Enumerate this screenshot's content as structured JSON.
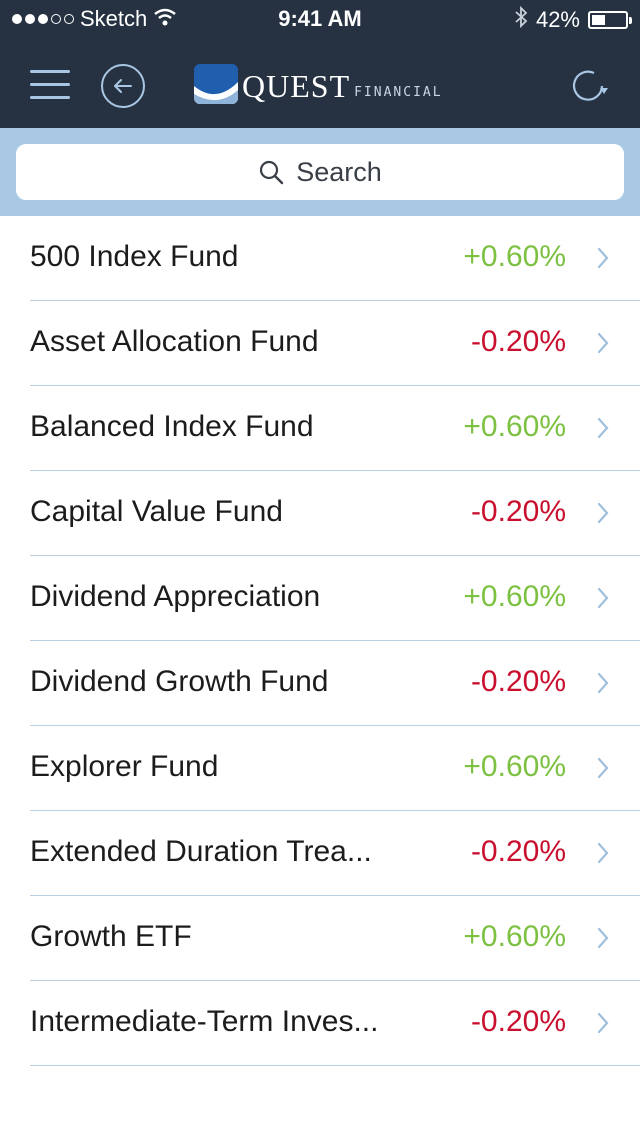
{
  "status": {
    "carrier": "Sketch",
    "time": "9:41 AM",
    "battery_percent_label": "42%",
    "battery_level": 0.42,
    "signal_bars_filled": 3,
    "signal_bars_total": 5
  },
  "header": {
    "brand_name": "QUEST",
    "brand_sub": "FINANCIAL",
    "icons": [
      "menu-icon",
      "back-arrow-icon",
      "refresh-icon"
    ],
    "bg_color": "#263241",
    "accent_color": "#a9c7e4"
  },
  "search": {
    "placeholder": "Search"
  },
  "colors": {
    "positive": "#7dc142",
    "negative": "#c8102e"
  },
  "funds": [
    {
      "name": "500 Index Fund",
      "change": "+0.60%",
      "trend": "up"
    },
    {
      "name": "Asset Allocation Fund",
      "change": "-0.20%",
      "trend": "down"
    },
    {
      "name": "Balanced Index Fund",
      "change": "+0.60%",
      "trend": "up"
    },
    {
      "name": "Capital Value Fund",
      "change": "-0.20%",
      "trend": "down"
    },
    {
      "name": "Dividend Appreciation",
      "change": "+0.60%",
      "trend": "up"
    },
    {
      "name": "Dividend Growth Fund",
      "change": "-0.20%",
      "trend": "down"
    },
    {
      "name": "Explorer Fund",
      "change": "+0.60%",
      "trend": "up"
    },
    {
      "name": "Extended Duration Trea...",
      "change": "-0.20%",
      "trend": "down"
    },
    {
      "name": "Growth ETF",
      "change": "+0.60%",
      "trend": "up"
    },
    {
      "name": "Intermediate-Term Inves...",
      "change": "-0.20%",
      "trend": "down"
    }
  ]
}
